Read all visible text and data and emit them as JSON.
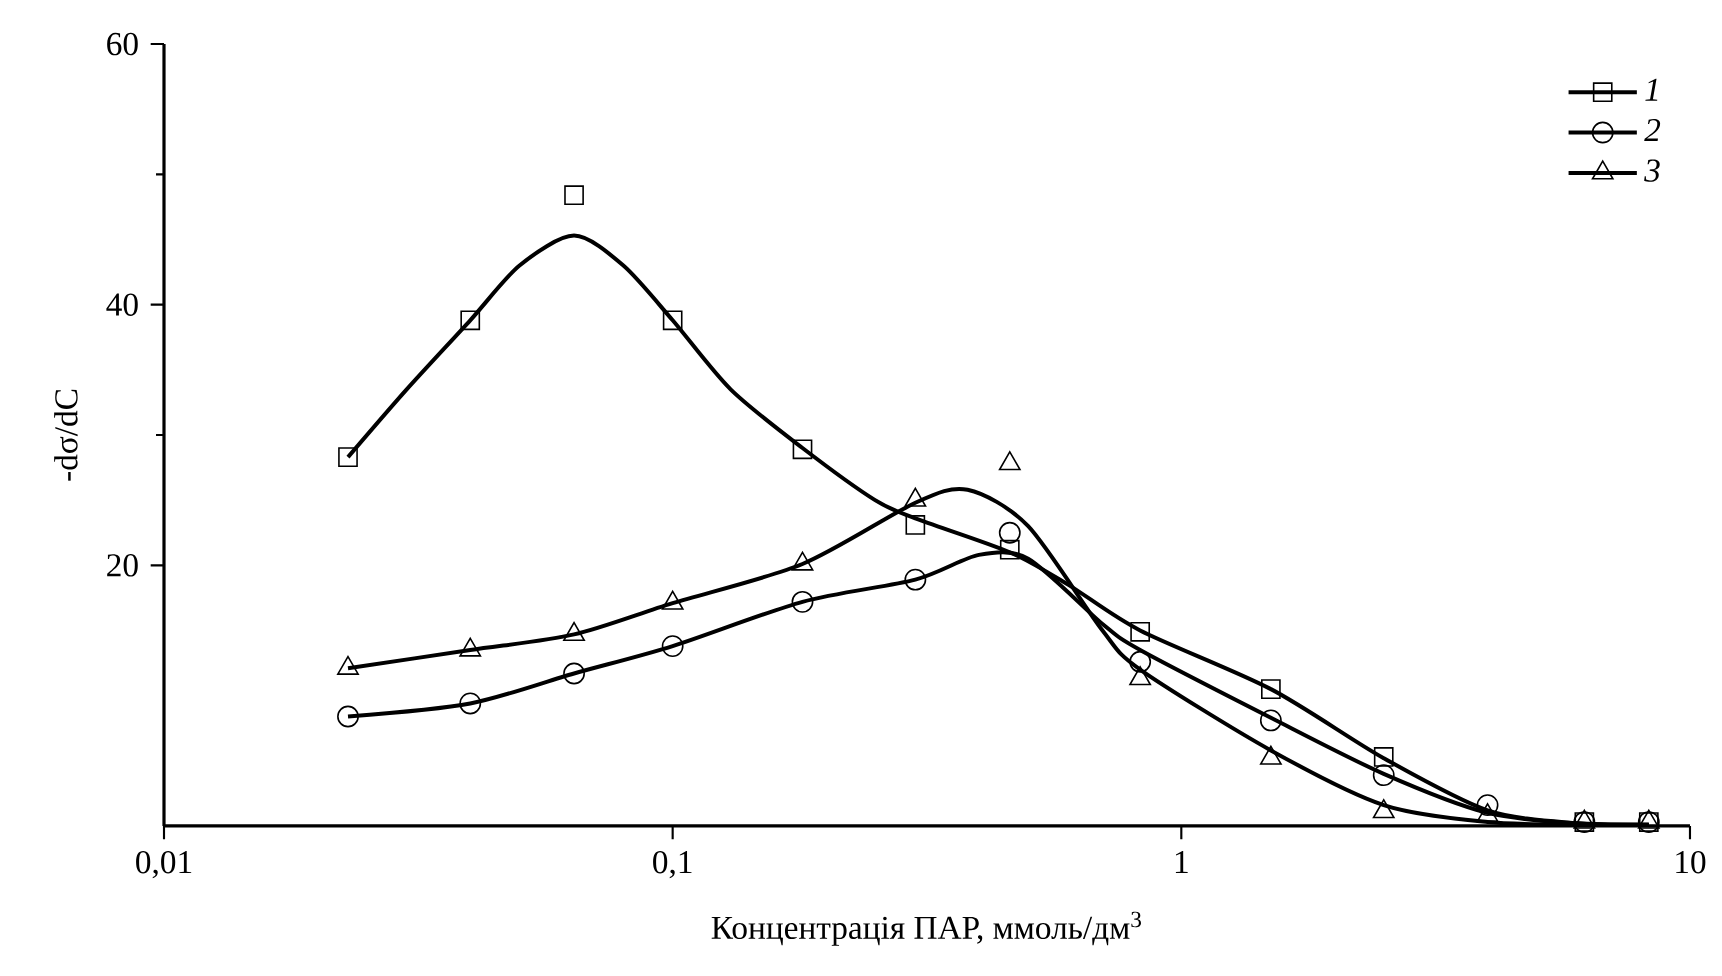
{
  "chart_data": {
    "type": "scatter",
    "xlabel": "Концентрація ПАР, ммоль/дм$^{3}$",
    "ylabel": "-dσ/dC",
    "log": "x",
    "xlim": [
      0.01,
      10
    ],
    "ylim": [
      0,
      60
    ],
    "xticks": [
      {
        "value": 0.01,
        "label": "0,01"
      },
      {
        "value": 0.1,
        "label": "0,1"
      },
      1,
      10
    ],
    "yticks": [
      20,
      40,
      60
    ],
    "legend": "top right",
    "grid": false,
    "series": [
      {
        "name": "1",
        "marker": "square",
        "color": "#000000",
        "x": [
          0.023,
          0.04,
          0.064,
          0.1,
          0.18,
          0.3,
          0.46,
          0.83,
          1.5,
          2.5,
          4,
          6.2,
          8.3
        ],
        "values": [
          28.3,
          38.8,
          48.4,
          38.8,
          28.9,
          23.1,
          21.2,
          14.9,
          10.5,
          5.3,
          null,
          0.3,
          0.3
        ]
      },
      {
        "name": "2",
        "marker": "circle",
        "color": "#000000",
        "x": [
          0.023,
          0.04,
          0.064,
          0.1,
          0.18,
          0.3,
          0.46,
          0.83,
          1.5,
          2.5,
          4,
          6.2,
          8.3
        ],
        "values": [
          8.4,
          9.4,
          11.7,
          13.8,
          17.2,
          18.9,
          22.5,
          12.6,
          8.1,
          3.9,
          1.6,
          0.3,
          0.3
        ]
      },
      {
        "name": "3",
        "marker": "triangle",
        "color": "#000000",
        "x": [
          0.023,
          0.04,
          0.064,
          0.1,
          0.18,
          0.3,
          0.46,
          0.83,
          1.5,
          2.5,
          4,
          6.2,
          8.3
        ],
        "values": [
          12.1,
          13.5,
          14.7,
          17.1,
          20.1,
          25.0,
          27.8,
          11.3,
          5.2,
          1.1,
          0.8,
          0.3,
          0.3
        ]
      },
      {
        "type": "line",
        "color": "#000000",
        "x": [
          0.023,
          0.03,
          0.04,
          0.05,
          0.064,
          0.08,
          0.1,
          0.13,
          0.18,
          0.25,
          0.3,
          0.46,
          0.6,
          0.83,
          1.5,
          2.5,
          4,
          6,
          8.3
        ],
        "values": [
          28.3,
          33.5,
          38.8,
          43,
          45.3,
          43,
          38.8,
          33.5,
          29,
          25,
          23.6,
          21,
          18.5,
          15,
          10.5,
          5.2,
          1.2,
          0.2,
          0.1
        ]
      },
      {
        "type": "line",
        "color": "#000000",
        "x": [
          0.023,
          0.04,
          0.064,
          0.1,
          0.18,
          0.3,
          0.4,
          0.5,
          0.7,
          0.83,
          1.5,
          2.5,
          4,
          6,
          8.3
        ],
        "values": [
          8.4,
          9.4,
          11.7,
          13.8,
          17.2,
          18.9,
          20.8,
          20.5,
          15.5,
          13.5,
          8.3,
          4.0,
          1.0,
          0.2,
          0.1
        ]
      },
      {
        "type": "line",
        "color": "#000000",
        "x": [
          0.023,
          0.04,
          0.064,
          0.1,
          0.18,
          0.3,
          0.38,
          0.5,
          0.7,
          0.83,
          1.5,
          2.5,
          4,
          6,
          8.3
        ],
        "values": [
          12.1,
          13.5,
          14.7,
          17.1,
          20.1,
          24.8,
          25.8,
          23,
          15,
          12,
          5.8,
          1.6,
          0.3,
          0.1,
          0.1
        ]
      }
    ]
  }
}
